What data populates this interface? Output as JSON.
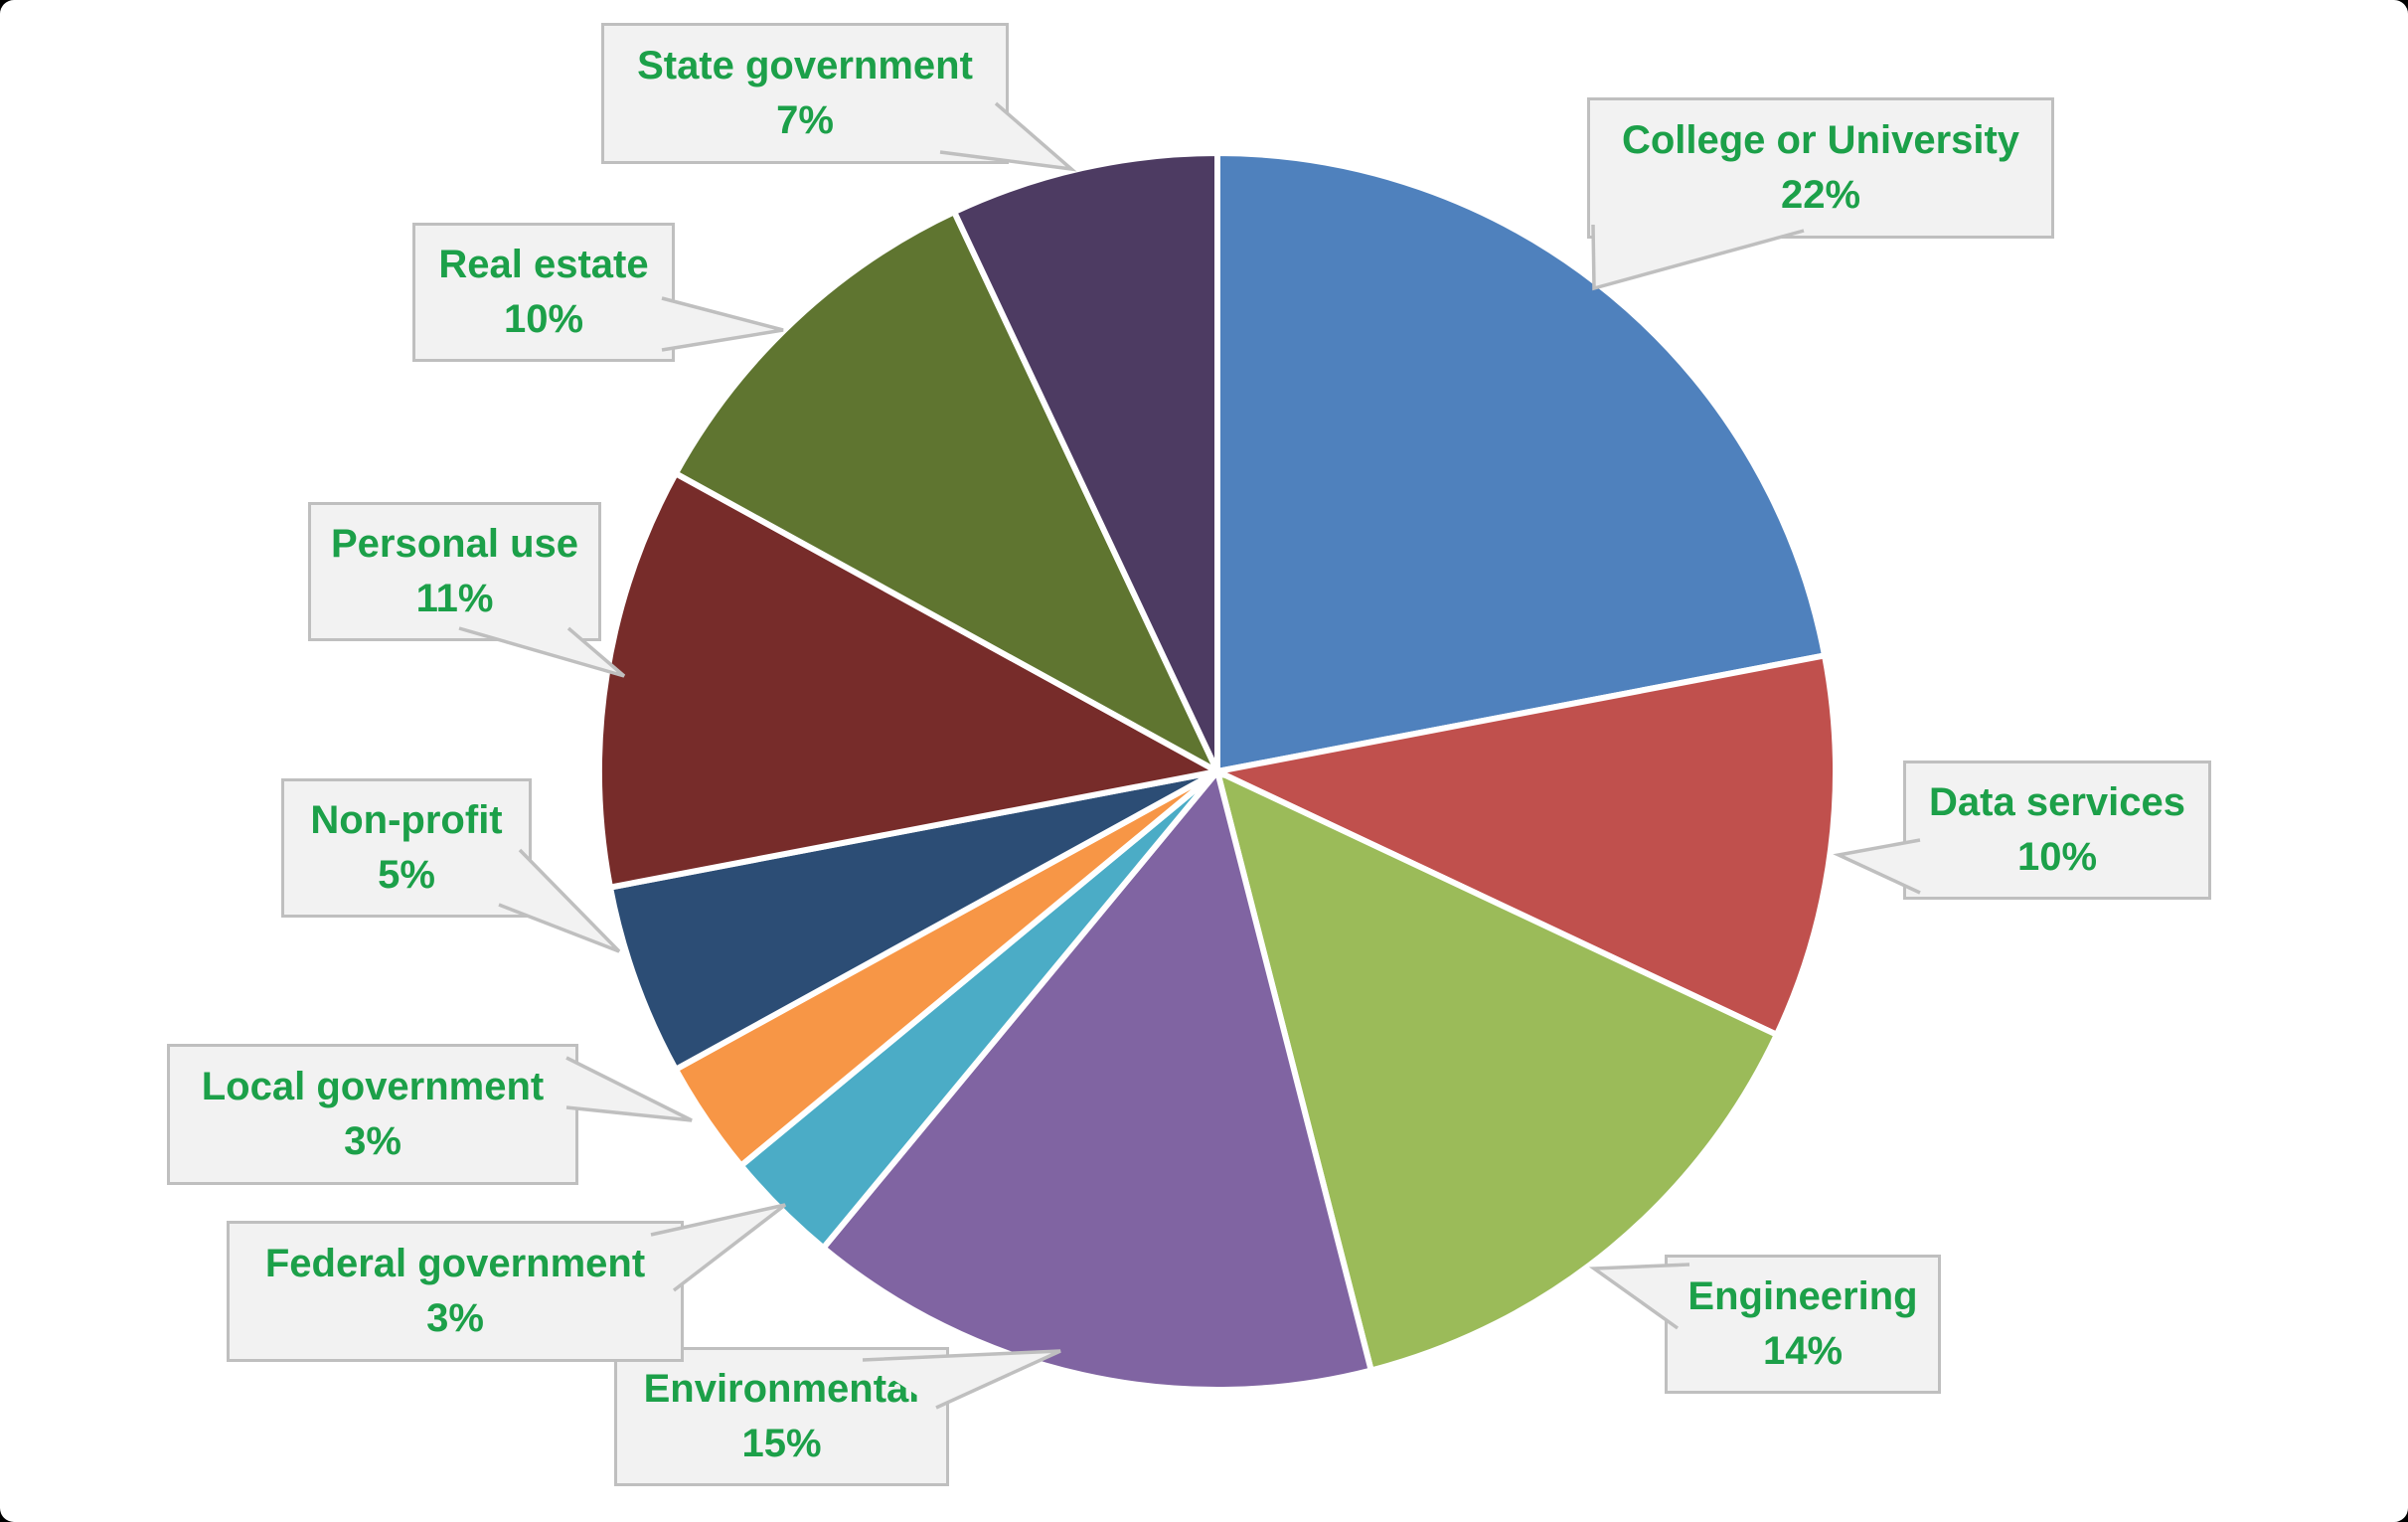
{
  "chart_data": {
    "type": "pie",
    "title": "",
    "unit": "%",
    "start_angle": "top",
    "direction": "clockwise",
    "label_style": "callout-boxes",
    "slices": [
      {
        "label": "College or University",
        "value": 22,
        "pct_label": "22%",
        "color": "#4F81BD"
      },
      {
        "label": "Data services",
        "value": 10,
        "pct_label": "10%",
        "color": "#C0504D"
      },
      {
        "label": "Engineering",
        "value": 14,
        "pct_label": "14%",
        "color": "#9BBB59"
      },
      {
        "label": "Environmental",
        "value": 15,
        "pct_label": "15%",
        "color": "#8064A2"
      },
      {
        "label": "Federal government",
        "value": 3,
        "pct_label": "3%",
        "color": "#4BACC6"
      },
      {
        "label": "Local government",
        "value": 3,
        "pct_label": "3%",
        "color": "#F79646"
      },
      {
        "label": "Non-profit",
        "value": 5,
        "pct_label": "5%",
        "color": "#2C4D75"
      },
      {
        "label": "Personal use",
        "value": 11,
        "pct_label": "11%",
        "color": "#772C2A"
      },
      {
        "label": "Real estate",
        "value": 10,
        "pct_label": "10%",
        "color": "#5F7530"
      },
      {
        "label": "State government",
        "value": 7,
        "pct_label": "7%",
        "color": "#4D3B62"
      }
    ]
  },
  "styles": {
    "label_text_color": "#1CA049",
    "callout_bg": "#F2F2F2",
    "callout_border": "#BFBFBF",
    "slice_stroke": "#FFFFFF",
    "canvas_bg": "#FFFFFF",
    "page_bg": "#000000"
  }
}
